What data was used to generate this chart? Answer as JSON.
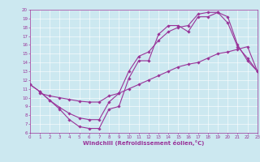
{
  "title": "",
  "xlabel": "Windchill (Refroidissement éolien,°C)",
  "bg_color": "#cce8f0",
  "line_color": "#993399",
  "line1": {
    "x": [
      0,
      1,
      2,
      3,
      4,
      5,
      6,
      7,
      8,
      9,
      10,
      11,
      12,
      13,
      14,
      15,
      16,
      17,
      18,
      19,
      20,
      21,
      22,
      23
    ],
    "y": [
      11.5,
      10.7,
      9.7,
      8.7,
      7.5,
      6.7,
      6.5,
      6.5,
      8.7,
      9.0,
      12.2,
      14.2,
      14.2,
      17.2,
      18.2,
      18.2,
      17.5,
      19.2,
      19.2,
      19.7,
      19.2,
      16.0,
      14.2,
      13.0
    ]
  },
  "line2": {
    "x": [
      0,
      1,
      2,
      3,
      4,
      5,
      6,
      7,
      8,
      9,
      10,
      11,
      12,
      13,
      14,
      15,
      16,
      17,
      18,
      19,
      20,
      21,
      22,
      23
    ],
    "y": [
      11.5,
      10.7,
      9.7,
      8.9,
      8.2,
      7.7,
      7.5,
      7.5,
      9.5,
      10.5,
      13.0,
      14.7,
      15.2,
      16.5,
      17.5,
      18.0,
      18.2,
      19.5,
      19.7,
      19.7,
      18.5,
      15.8,
      14.5,
      13.0
    ]
  },
  "line3": {
    "x": [
      1,
      2,
      3,
      4,
      5,
      6,
      7,
      8,
      9,
      10,
      11,
      12,
      13,
      14,
      15,
      16,
      17,
      18,
      19,
      20,
      21,
      22,
      23
    ],
    "y": [
      10.5,
      10.2,
      10.0,
      9.8,
      9.6,
      9.5,
      9.5,
      10.2,
      10.5,
      11.0,
      11.5,
      12.0,
      12.5,
      13.0,
      13.5,
      13.8,
      14.0,
      14.5,
      15.0,
      15.2,
      15.5,
      15.8,
      13.0
    ]
  },
  "ylim": [
    6,
    20
  ],
  "xlim": [
    0,
    23
  ],
  "yticks": [
    6,
    7,
    8,
    9,
    10,
    11,
    12,
    13,
    14,
    15,
    16,
    17,
    18,
    19,
    20
  ],
  "xticks": [
    0,
    1,
    2,
    3,
    4,
    5,
    6,
    7,
    8,
    9,
    10,
    11,
    12,
    13,
    14,
    15,
    16,
    17,
    18,
    19,
    20,
    21,
    22,
    23
  ],
  "marker": "D",
  "markersize": 1.8,
  "linewidth": 0.8,
  "tick_fontsize": 4.0,
  "xlabel_fontsize": 5.0
}
